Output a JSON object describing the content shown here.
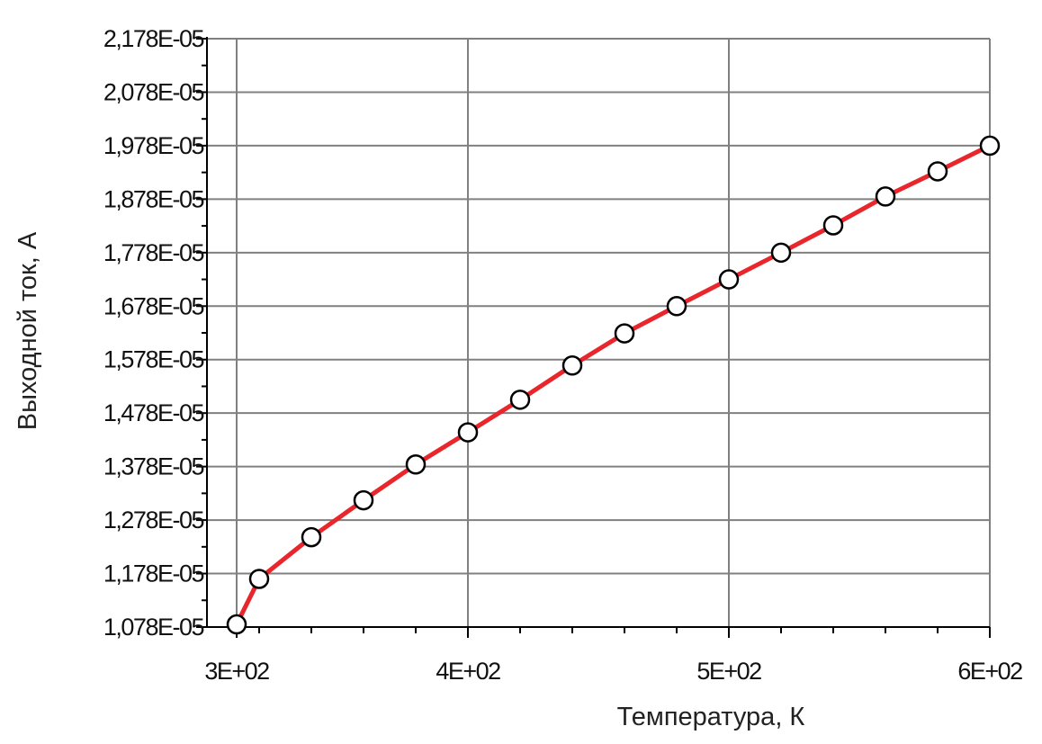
{
  "chart_data": {
    "type": "line",
    "xlabel": "Температура, К",
    "ylabel": "Выходной ток, А",
    "xlim": [
      300,
      600
    ],
    "ylim": [
      1.078e-05,
      2.178e-05
    ],
    "x_ticks": [
      {
        "value": 300,
        "label": "3E+02"
      },
      {
        "value": 400,
        "label": "4E+02"
      },
      {
        "value": 500,
        "label": "5E+02"
      },
      {
        "value": 600,
        "label": "6E+02"
      }
    ],
    "y_ticks": [
      {
        "value": 1.078e-05,
        "label": "1,078E-05"
      },
      {
        "value": 1.178e-05,
        "label": "1,178E-05"
      },
      {
        "value": 1.278e-05,
        "label": "1,278E-05"
      },
      {
        "value": 1.378e-05,
        "label": "1,378E-05"
      },
      {
        "value": 1.478e-05,
        "label": "1,478E-05"
      },
      {
        "value": 1.578e-05,
        "label": "1,578E-05"
      },
      {
        "value": 1.678e-05,
        "label": "1,678E-05"
      },
      {
        "value": 1.778e-05,
        "label": "1,778E-05"
      },
      {
        "value": 1.878e-05,
        "label": "1,878E-05"
      },
      {
        "value": 1.978e-05,
        "label": "1,978E-05"
      },
      {
        "value": 2.078e-05,
        "label": "2,078E-05"
      },
      {
        "value": 2.178e-05,
        "label": "2,178E-05"
      }
    ],
    "x_minor_step": 20,
    "y_minor_step": 5e-07,
    "grid": true,
    "series": [
      {
        "marker": "open-circle",
        "x": [
          300,
          320,
          340,
          360,
          380,
          400,
          420,
          440,
          460,
          480,
          500,
          520,
          540,
          560,
          580,
          600
        ],
        "y": [
          1.083e-05,
          1.168e-05,
          1.246e-05,
          1.315e-05,
          1.382e-05,
          1.442e-05,
          1.503e-05,
          1.567e-05,
          1.627e-05,
          1.678e-05,
          1.728e-05,
          1.778e-05,
          1.829e-05,
          1.883e-05,
          1.93e-05,
          1.978e-05
        ]
      }
    ],
    "colors": {
      "line": "#e8262b",
      "marker_fill": "#ffffff",
      "marker_stroke": "#000000",
      "grid": "#808080",
      "axis": "#000000"
    }
  }
}
